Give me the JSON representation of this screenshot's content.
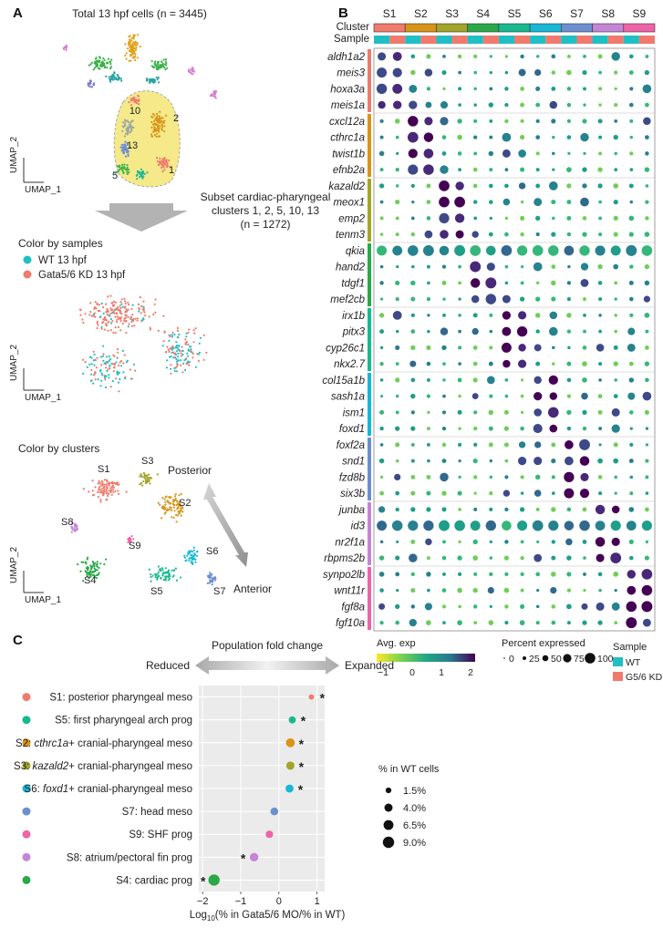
{
  "panels": {
    "a": "A",
    "b": "B",
    "c": "C"
  },
  "panel_a": {
    "umap1_title": "Total 13 hpf cells (n = 3445)",
    "axis_y": "UMAP_2",
    "axis_x": "UMAP_1",
    "cluster_labels": [
      "10",
      "2",
      "13",
      "5",
      "1"
    ],
    "subset_line1": "Subset cardiac-pharyngeal",
    "subset_line2": "clusters 1, 2, 5, 10, 13",
    "subset_line3": "(n = 1272)",
    "color_by_samples": "Color by samples",
    "legend_wt": "WT 13 hpf",
    "legend_kd": "Gata5/6 KD 13 hpf",
    "color_by_clusters": "Color by clusters",
    "posterior": "Posterior",
    "anterior": "Anterior",
    "umap3_labels": [
      "S1",
      "S3",
      "S2",
      "S8",
      "S9",
      "S6",
      "S4",
      "S5",
      "S7"
    ],
    "colors": {
      "wt": "#1fbfc4",
      "kd": "#ef7a6d"
    }
  },
  "panel_b": {
    "row_cluster": "Cluster",
    "row_sample": "Sample",
    "clusters": [
      "S1",
      "S2",
      "S3",
      "S4",
      "S5",
      "S6",
      "S7",
      "S8",
      "S9"
    ],
    "cluster_colors": [
      "#ef7a6d",
      "#d89418",
      "#a3a52a",
      "#2aa84a",
      "#19b88f",
      "#17b7d6",
      "#6d8fd0",
      "#c585d6",
      "#ef64a7"
    ],
    "genes": [
      "aldh1a2",
      "meis3",
      "hoxa3a",
      "meis1a",
      "cxcl12a",
      "cthrc1a",
      "twist1b",
      "efnb2a",
      "kazald2",
      "meox1",
      "emp2",
      "tenm3",
      "qkia",
      "hand2",
      "tdgf1",
      "mef2cb",
      "irx1b",
      "pitx3",
      "cyp26c1",
      "nkx2.7",
      "col15a1b",
      "sash1a",
      "ism1",
      "foxd1",
      "foxf2a",
      "snd1",
      "fzd8b",
      "six3b",
      "junba",
      "id3",
      "nr2f1a",
      "rbpms2b",
      "synpo2lb",
      "wnt11r",
      "fgf8a",
      "fgf10a"
    ],
    "gene_groups": [
      4,
      4,
      4,
      4,
      4,
      4,
      4,
      4,
      4
    ],
    "legend_avg_title": "Avg. exp",
    "legend_avg_ticks": [
      "−1",
      "0",
      "1",
      "2"
    ],
    "legend_pct_title": "Percent expressed",
    "legend_pct_ticks": [
      "0",
      "25",
      "50",
      "75",
      "100"
    ],
    "legend_sample_title": "Sample",
    "legend_sample_wt": "WT",
    "legend_sample_kd": "G5/6 KD"
  },
  "chart_data": {
    "type": "scatter",
    "title": "Population fold change",
    "left_label": "Reduced",
    "right_label": "Expanded",
    "xlabel": "Log10(% in Gata5/6 MO/% in WT)",
    "xlabel_main": "Log",
    "xlabel_sub": "10",
    "xlabel_rest": "(% in Gata5/6 MO/% in WT)",
    "xlim": [
      -2.1,
      1.2
    ],
    "x_ticks": [
      "−2",
      "−1",
      "0",
      "1"
    ],
    "x_tick_values": [
      -2,
      -1,
      0,
      1
    ],
    "categories": [
      {
        "pre": "S1: posterior pharyngeal meso",
        "it": "",
        "post": ""
      },
      {
        "pre": "S5: first pharyngeal arch prog",
        "it": "",
        "post": ""
      },
      {
        "pre": "S2: ",
        "it": "cthrc1a",
        "post": "+ cranial-pharyngeal meso"
      },
      {
        "pre": "S3: ",
        "it": "kazald2",
        "post": "+ cranial-pharyngeal meso"
      },
      {
        "pre": "S6: ",
        "it": "foxd1",
        "post": "+ cranial-pharyngeal meso"
      },
      {
        "pre": "S7: head meso",
        "it": "",
        "post": ""
      },
      {
        "pre": "S9: SHF prog",
        "it": "",
        "post": ""
      },
      {
        "pre": "S8: atrium/pectoral fin prog",
        "it": "",
        "post": ""
      },
      {
        "pre": "S4: cardiac prog",
        "it": "",
        "post": ""
      }
    ],
    "x": [
      0.85,
      0.35,
      0.3,
      0.3,
      0.28,
      -0.12,
      -0.25,
      -0.65,
      -1.7
    ],
    "pct_wt": [
      1.2,
      2.8,
      5.0,
      4.2,
      3.8,
      3.5,
      3.2,
      4.6,
      9.0
    ],
    "significant": [
      "*",
      "*",
      "*",
      "*",
      "*",
      "",
      "",
      "*",
      "*"
    ],
    "colors": [
      "#ef7a6d",
      "#19b88f",
      "#d89418",
      "#a3a52a",
      "#17b7d6",
      "#6d8fd0",
      "#ef64a7",
      "#c585d6",
      "#2aa84a"
    ],
    "size_legend_title": "% in WT cells",
    "size_legend": [
      "1.5%",
      "4.0%",
      "6.5%",
      "9.0%"
    ],
    "size_legend_values": [
      1.5,
      4.0,
      6.5,
      9.0
    ]
  }
}
